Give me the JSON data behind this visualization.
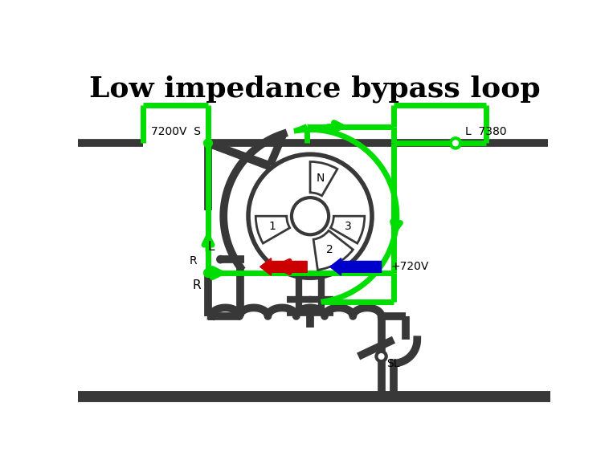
{
  "title": "Low impedance bypass loop",
  "title_fontsize": 26,
  "bg_color": "#ffffff",
  "green": "#00dd00",
  "dark": "#383838",
  "red": "#cc0000",
  "blue": "#0000cc",
  "lw_green": 5,
  "lw_dark": 7,
  "lw_dark2": 4,
  "figsize": [
    7.63,
    5.88
  ],
  "dpi": 100,
  "xlim": [
    0,
    763
  ],
  "ylim": [
    0,
    588
  ]
}
